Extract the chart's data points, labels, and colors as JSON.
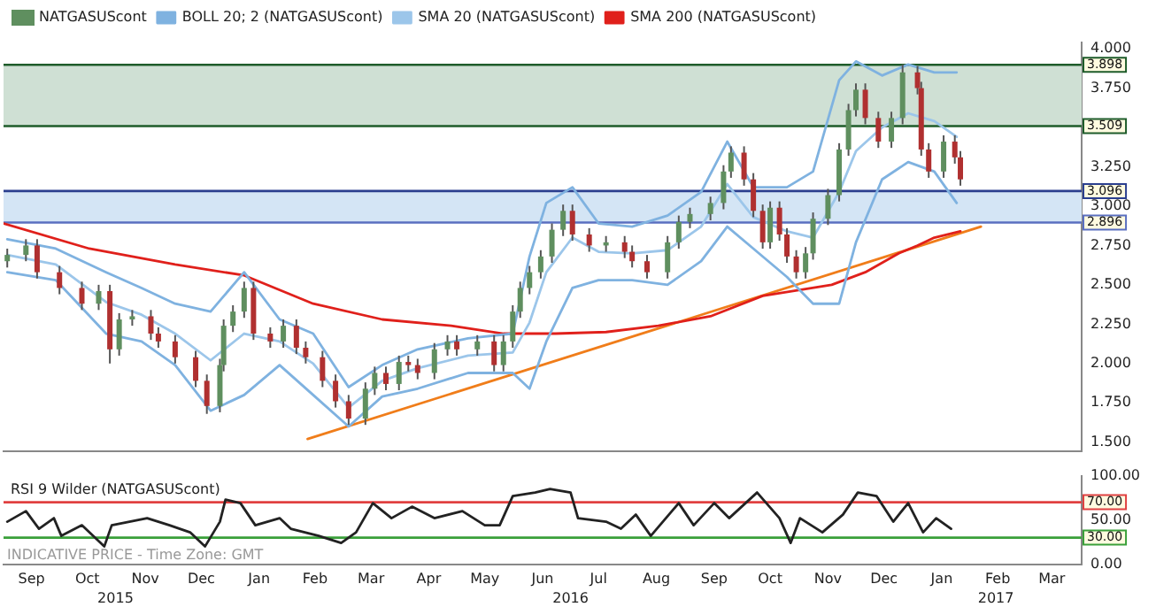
{
  "chart_data": [
    {
      "type": "candlestick",
      "legend": "top left",
      "grid": false,
      "tick_labels": "y",
      "marker": "none",
      "line_style": "solid",
      "xlim": [
        "2015-09-01",
        "2017-04-01"
      ],
      "xticks": [
        {
          "value": "2015-09-16",
          "label": null
        },
        {
          "value": "2016-09-16",
          "label": null
        }
      ],
      "ylim": [
        1.44,
        4.04
      ],
      "yticks": [
        {
          "value": 1.5,
          "label": "1.500"
        },
        {
          "value": 1.75,
          "label": "1.750"
        },
        {
          "value": 2,
          "label": "2.000"
        },
        {
          "value": 2.25,
          "label": "2.250"
        },
        {
          "value": 2.5,
          "label": "2.500"
        },
        {
          "value": 2.75,
          "label": "2.750"
        },
        {
          "value": 3,
          "label": "3.000"
        },
        {
          "value": 3.25,
          "label": "3.250"
        },
        {
          "value": 3.75,
          "label": "3.750"
        },
        {
          "value": 4,
          "label": "4.000"
        }
      ],
      "bands": [
        {
          "axis": "y",
          "from": 3.509,
          "to": 3.898,
          "color": "#cfe0d4"
        },
        {
          "axis": "y",
          "from": 2.896,
          "to": 3.096,
          "color": "#d4e5f5"
        }
      ],
      "ref_lines": [
        {
          "axis": "y",
          "value": 3.898,
          "label": "3.898",
          "color": "#1e5c2a"
        },
        {
          "axis": "y",
          "value": 3.509,
          "label": "3.509",
          "color": "#1e5c2a"
        },
        {
          "axis": "y",
          "value": 3.096,
          "label": "3.096",
          "color": "#2b3f8f"
        },
        {
          "axis": "y",
          "value": 2.896,
          "label": "2.896",
          "color": "#5a6fc0"
        }
      ],
      "series": [
        {
          "name": "NATGASUScont",
          "x": [
            "2015-09-03",
            "2015-09-13",
            "2015-09-19",
            "2015-10-01",
            "2015-10-13",
            "2015-10-22",
            "2015-10-28",
            "2015-11-02",
            "2015-11-09",
            "2015-11-19",
            "2015-11-23",
            "2015-12-02",
            "2015-12-13",
            "2015-12-19",
            "2015-12-26",
            "2015-12-28",
            "2016-01-02",
            "2016-01-08",
            "2016-01-13",
            "2016-01-22",
            "2016-01-29",
            "2016-02-05",
            "2016-02-10",
            "2016-02-19",
            "2016-02-26",
            "2016-03-04",
            "2016-03-13",
            "2016-03-18",
            "2016-03-24",
            "2016-03-31",
            "2016-04-05",
            "2016-04-10",
            "2016-04-19",
            "2016-04-26",
            "2016-05-01",
            "2016-05-12",
            "2016-05-21",
            "2016-05-26",
            "2016-05-31",
            "2016-06-04",
            "2016-06-09",
            "2016-06-15",
            "2016-06-21",
            "2016-06-27",
            "2016-07-02",
            "2016-07-11",
            "2016-07-20",
            "2016-07-30",
            "2016-08-03",
            "2016-08-11",
            "2016-08-22",
            "2016-08-28",
            "2016-09-03",
            "2016-09-14",
            "2016-09-21",
            "2016-09-25",
            "2016-10-02",
            "2016-10-07",
            "2016-10-12",
            "2016-10-16",
            "2016-10-21",
            "2016-10-25",
            "2016-10-30",
            "2016-11-04",
            "2016-11-08",
            "2016-11-16",
            "2016-11-22",
            "2016-11-27",
            "2016-12-01",
            "2016-12-06",
            "2016-12-13",
            "2016-12-20",
            "2016-12-26",
            "2017-01-03",
            "2017-01-05",
            "2017-01-09",
            "2017-01-17",
            "2017-01-23",
            "2017-01-26"
          ],
          "ohlc": [
            [
              2.65,
              2.73,
              2.61,
              2.69
            ],
            [
              2.69,
              2.79,
              2.65,
              2.75
            ],
            [
              2.75,
              2.79,
              2.54,
              2.58
            ],
            [
              2.58,
              2.62,
              2.44,
              2.48
            ],
            [
              2.48,
              2.52,
              2.34,
              2.38
            ],
            [
              2.38,
              2.5,
              2.34,
              2.46
            ],
            [
              2.46,
              2.5,
              2.0,
              2.09
            ],
            [
              2.09,
              2.32,
              2.05,
              2.28
            ],
            [
              2.28,
              2.34,
              2.24,
              2.3
            ],
            [
              2.3,
              2.34,
              2.15,
              2.19
            ],
            [
              2.19,
              2.23,
              2.1,
              2.14
            ],
            [
              2.14,
              2.18,
              2.0,
              2.04
            ],
            [
              2.04,
              2.08,
              1.85,
              1.89
            ],
            [
              1.89,
              1.93,
              1.68,
              1.73
            ],
            [
              1.73,
              2.03,
              1.69,
              1.99
            ],
            [
              1.99,
              2.28,
              1.95,
              2.24
            ],
            [
              2.24,
              2.37,
              2.2,
              2.33
            ],
            [
              2.33,
              2.52,
              2.29,
              2.48
            ],
            [
              2.48,
              2.52,
              2.15,
              2.19
            ],
            [
              2.19,
              2.23,
              2.1,
              2.14
            ],
            [
              2.14,
              2.28,
              2.1,
              2.24
            ],
            [
              2.24,
              2.28,
              2.06,
              2.1
            ],
            [
              2.1,
              2.14,
              2.0,
              2.04
            ],
            [
              2.04,
              2.08,
              1.85,
              1.89
            ],
            [
              1.89,
              1.93,
              1.72,
              1.76
            ],
            [
              1.76,
              1.8,
              1.61,
              1.65
            ],
            [
              1.65,
              1.88,
              1.61,
              1.84
            ],
            [
              1.84,
              1.98,
              1.8,
              1.94
            ],
            [
              1.94,
              1.98,
              1.83,
              1.87
            ],
            [
              1.87,
              2.05,
              1.83,
              2.01
            ],
            [
              2.01,
              2.05,
              1.95,
              1.99
            ],
            [
              1.99,
              2.03,
              1.9,
              1.94
            ],
            [
              1.94,
              2.13,
              1.9,
              2.09
            ],
            [
              2.09,
              2.18,
              2.05,
              2.14
            ],
            [
              2.14,
              2.18,
              2.05,
              2.09
            ],
            [
              2.09,
              2.18,
              2.05,
              2.14
            ],
            [
              2.14,
              2.18,
              1.95,
              1.99
            ],
            [
              1.99,
              2.18,
              1.95,
              2.14
            ],
            [
              2.14,
              2.37,
              2.1,
              2.33
            ],
            [
              2.33,
              2.52,
              2.29,
              2.48
            ],
            [
              2.48,
              2.62,
              2.44,
              2.58
            ],
            [
              2.58,
              2.72,
              2.54,
              2.68
            ],
            [
              2.68,
              2.89,
              2.64,
              2.85
            ],
            [
              2.85,
              3.01,
              2.81,
              2.97
            ],
            [
              2.97,
              3.01,
              2.78,
              2.82
            ],
            [
              2.82,
              2.86,
              2.71,
              2.75
            ],
            [
              2.75,
              2.81,
              2.71,
              2.77
            ],
            [
              2.77,
              2.81,
              2.67,
              2.71
            ],
            [
              2.71,
              2.75,
              2.61,
              2.65
            ],
            [
              2.65,
              2.69,
              2.54,
              2.58
            ],
            [
              2.58,
              2.81,
              2.54,
              2.77
            ],
            [
              2.77,
              2.94,
              2.73,
              2.9
            ],
            [
              2.9,
              2.99,
              2.86,
              2.95
            ],
            [
              2.95,
              3.06,
              2.91,
              3.02
            ],
            [
              3.02,
              3.26,
              2.98,
              3.22
            ],
            [
              3.22,
              3.38,
              3.18,
              3.34
            ],
            [
              3.34,
              3.38,
              3.13,
              3.17
            ],
            [
              3.17,
              3.21,
              2.93,
              2.97
            ],
            [
              2.97,
              3.01,
              2.73,
              2.77
            ],
            [
              2.77,
              3.03,
              2.73,
              2.99
            ],
            [
              2.99,
              3.03,
              2.78,
              2.82
            ],
            [
              2.82,
              2.86,
              2.64,
              2.68
            ],
            [
              2.68,
              2.72,
              2.54,
              2.58
            ],
            [
              2.58,
              2.74,
              2.54,
              2.7
            ],
            [
              2.7,
              2.96,
              2.66,
              2.92
            ],
            [
              2.92,
              3.11,
              2.88,
              3.07
            ],
            [
              3.07,
              3.4,
              3.03,
              3.36
            ],
            [
              3.36,
              3.65,
              3.32,
              3.61
            ],
            [
              3.61,
              3.78,
              3.57,
              3.74
            ],
            [
              3.74,
              3.78,
              3.52,
              3.56
            ],
            [
              3.56,
              3.6,
              3.37,
              3.41
            ],
            [
              3.41,
              3.6,
              3.37,
              3.56
            ],
            [
              3.56,
              3.9,
              3.52,
              3.85
            ],
            [
              3.85,
              3.89,
              3.71,
              3.75
            ],
            [
              3.75,
              3.79,
              3.32,
              3.36
            ],
            [
              3.36,
              3.4,
              3.18,
              3.22
            ],
            [
              3.22,
              3.45,
              3.18,
              3.41
            ],
            [
              3.41,
              3.45,
              3.27,
              3.31
            ],
            [
              3.31,
              3.35,
              3.13,
              3.17
            ]
          ],
          "colors": [
            "#5f8f5f",
            "#5f8f5f",
            "#b03030",
            "#b03030",
            "#b03030",
            "#5f8f5f",
            "#b03030",
            "#5f8f5f",
            "#5f8f5f",
            "#b03030",
            "#b03030",
            "#b03030",
            "#b03030",
            "#b03030",
            "#5f8f5f",
            "#5f8f5f",
            "#5f8f5f",
            "#5f8f5f",
            "#b03030",
            "#b03030",
            "#5f8f5f",
            "#b03030",
            "#b03030",
            "#b03030",
            "#b03030",
            "#b03030",
            "#5f8f5f",
            "#5f8f5f",
            "#b03030",
            "#5f8f5f",
            "#b03030",
            "#b03030",
            "#5f8f5f",
            "#5f8f5f",
            "#b03030",
            "#5f8f5f",
            "#b03030",
            "#5f8f5f",
            "#5f8f5f",
            "#5f8f5f",
            "#5f8f5f",
            "#5f8f5f",
            "#5f8f5f",
            "#5f8f5f",
            "#b03030",
            "#b03030",
            "#5f8f5f",
            "#b03030",
            "#b03030",
            "#b03030",
            "#5f8f5f",
            "#5f8f5f",
            "#5f8f5f",
            "#5f8f5f",
            "#5f8f5f",
            "#5f8f5f",
            "#b03030",
            "#b03030",
            "#b03030",
            "#5f8f5f",
            "#b03030",
            "#b03030",
            "#b03030",
            "#5f8f5f",
            "#5f8f5f",
            "#5f8f5f",
            "#5f8f5f",
            "#5f8f5f",
            "#5f8f5f",
            "#b03030",
            "#b03030",
            "#5f8f5f",
            "#5f8f5f",
            "#b03030",
            "#b03030",
            "#b03030",
            "#5f8f5f",
            "#b03030",
            "#b03030"
          ]
        },
        {
          "type": "line",
          "name": "BOLL 20; 2 (NATGASUScont)",
          "color": "#7fb2e0",
          "x": [
            "2015-09-03",
            "2015-09-29",
            "2015-10-26",
            "2015-11-14",
            "2015-12-02",
            "2015-12-21",
            "2016-01-08",
            "2016-01-27",
            "2016-02-14",
            "2016-03-04",
            "2016-03-22",
            "2016-04-10",
            "2016-05-07",
            "2016-05-31",
            "2016-06-09",
            "2016-06-18",
            "2016-07-02",
            "2016-07-16",
            "2016-08-03",
            "2016-08-22",
            "2016-09-09",
            "2016-09-23",
            "2016-10-07",
            "2016-10-25",
            "2016-11-08",
            "2016-11-22",
            "2016-12-01",
            "2016-12-15",
            "2016-12-29",
            "2017-01-12",
            "2017-01-24"
          ],
          "values": [
            2.79,
            2.73,
            2.58,
            2.48,
            2.38,
            2.33,
            2.58,
            2.28,
            2.19,
            1.85,
            1.99,
            2.09,
            2.16,
            2.19,
            2.68,
            3.02,
            3.12,
            2.89,
            2.87,
            2.94,
            3.09,
            3.41,
            3.12,
            3.12,
            3.22,
            3.8,
            3.92,
            3.83,
            3.9,
            3.85,
            3.85
          ]
        },
        {
          "type": "line",
          "color": "#7fb2e0",
          "x": [
            "2015-09-03",
            "2015-09-29",
            "2015-10-26",
            "2015-11-14",
            "2015-12-02",
            "2015-12-21",
            "2016-01-08",
            "2016-01-27",
            "2016-02-14",
            "2016-03-04",
            "2016-03-22",
            "2016-04-10",
            "2016-05-07",
            "2016-05-31",
            "2016-06-09",
            "2016-06-18",
            "2016-07-02",
            "2016-07-16",
            "2016-08-03",
            "2016-08-22",
            "2016-09-09",
            "2016-09-23",
            "2016-10-07",
            "2016-10-25",
            "2016-11-08",
            "2016-11-22",
            "2016-12-01",
            "2016-12-15",
            "2016-12-29",
            "2017-01-12",
            "2017-01-24"
          ],
          "values": [
            2.58,
            2.53,
            2.19,
            2.14,
            1.99,
            1.7,
            1.8,
            1.99,
            1.8,
            1.6,
            1.79,
            1.84,
            1.94,
            1.94,
            1.84,
            2.14,
            2.48,
            2.53,
            2.53,
            2.5,
            2.65,
            2.87,
            2.73,
            2.55,
            2.38,
            2.38,
            2.77,
            3.17,
            3.28,
            3.22,
            3.02
          ]
        },
        {
          "type": "line",
          "name": "SMA 20 (NATGASUScont)",
          "color": "#9cc6ea",
          "x": [
            "2015-09-03",
            "2015-09-29",
            "2015-10-26",
            "2015-11-14",
            "2015-12-02",
            "2015-12-21",
            "2016-01-08",
            "2016-01-27",
            "2016-02-14",
            "2016-03-04",
            "2016-03-22",
            "2016-04-10",
            "2016-05-07",
            "2016-05-31",
            "2016-06-09",
            "2016-06-18",
            "2016-07-02",
            "2016-07-16",
            "2016-08-03",
            "2016-08-22",
            "2016-09-09",
            "2016-09-23",
            "2016-10-07",
            "2016-10-25",
            "2016-11-08",
            "2016-11-22",
            "2016-12-01",
            "2016-12-15",
            "2016-12-29",
            "2017-01-12",
            "2017-01-24"
          ],
          "values": [
            2.69,
            2.63,
            2.39,
            2.31,
            2.19,
            2.02,
            2.19,
            2.14,
            2.0,
            1.72,
            1.89,
            1.97,
            2.05,
            2.07,
            2.26,
            2.58,
            2.8,
            2.71,
            2.7,
            2.72,
            2.87,
            3.14,
            2.93,
            2.84,
            2.8,
            3.09,
            3.35,
            3.5,
            3.59,
            3.54,
            3.44
          ]
        },
        {
          "type": "line",
          "name": "SMA 200 (NATGASUScont)",
          "color": "#e0201b",
          "x": [
            "2015-09-01",
            "2015-10-17",
            "2015-12-02",
            "2016-01-08",
            "2016-02-14",
            "2016-03-22",
            "2016-04-28",
            "2016-05-26",
            "2016-06-23",
            "2016-07-20",
            "2016-08-17",
            "2016-09-14",
            "2016-10-12",
            "2016-11-18",
            "2016-12-06",
            "2016-12-24",
            "2017-01-03",
            "2017-01-12",
            "2017-01-26"
          ],
          "values": [
            2.89,
            2.73,
            2.63,
            2.56,
            2.38,
            2.28,
            2.24,
            2.19,
            2.19,
            2.2,
            2.24,
            2.3,
            2.43,
            2.5,
            2.58,
            2.7,
            2.75,
            2.8,
            2.84
          ]
        },
        {
          "type": "line",
          "color": "#f07d1a",
          "x": [
            "2016-02-11",
            "2017-02-06"
          ],
          "values": [
            1.52,
            2.87
          ]
        }
      ]
    },
    {
      "type": "line",
      "title": "RSI 9 Wilder (NATGASUScont)",
      "grid": false,
      "legend": false,
      "marker": "none",
      "line_style": "solid",
      "annotations": [
        "INDICATIVE PRICE - Time Zone: GMT"
      ],
      "xlim": [
        "2015-09-01",
        "2017-04-01"
      ],
      "xticks": [
        {
          "value": "2015-09-16",
          "label": "Sep"
        },
        {
          "value": "2015-10-16",
          "label": "Oct"
        },
        {
          "value": "2015-11-16",
          "label": "Nov"
        },
        {
          "value": "2015-12-16",
          "label": "Dec"
        },
        {
          "value": "2016-01-16",
          "label": "Jan"
        },
        {
          "value": "2016-02-15",
          "label": "Feb"
        },
        {
          "value": "2016-03-16",
          "label": "Mar"
        },
        {
          "value": "2016-04-16",
          "label": "Apr"
        },
        {
          "value": "2016-05-16",
          "label": "May"
        },
        {
          "value": "2016-06-16",
          "label": "Jun"
        },
        {
          "value": "2016-07-16",
          "label": "Jul"
        },
        {
          "value": "2016-08-16",
          "label": "Aug"
        },
        {
          "value": "2016-09-16",
          "label": "Sep"
        },
        {
          "value": "2016-10-16",
          "label": "Oct"
        },
        {
          "value": "2016-11-16",
          "label": "Nov"
        },
        {
          "value": "2016-12-16",
          "label": "Dec"
        },
        {
          "value": "2017-01-16",
          "label": "Jan"
        },
        {
          "value": "2017-02-15",
          "label": "Feb"
        },
        {
          "value": "2017-03-16",
          "label": "Mar"
        }
      ],
      "x2lim": [
        "2015-09-01",
        "2017-04-01"
      ],
      "x2ticks": [
        {
          "value": "2015-10-31",
          "label": "2015"
        },
        {
          "value": "2016-07-01",
          "label": "2016"
        },
        {
          "value": "2017-02-14",
          "label": "2017"
        }
      ],
      "ylim": [
        0,
        100
      ],
      "yticks": [
        {
          "value": 0,
          "label": "0.00"
        },
        {
          "value": 50,
          "label": "50.00"
        },
        {
          "value": 100,
          "label": "100.00"
        }
      ],
      "ref_lines": [
        {
          "axis": "y",
          "value": 70,
          "label": "70.00",
          "color": "#e04040"
        },
        {
          "axis": "y",
          "value": 30,
          "label": "30.00",
          "color": "#3aa03a"
        }
      ],
      "series": [
        {
          "color": "#222222",
          "x": [
            "2015-09-03",
            "2015-09-13",
            "2015-09-20",
            "2015-09-28",
            "2015-10-02",
            "2015-10-13",
            "2015-10-25",
            "2015-10-29",
            "2015-11-17",
            "2015-11-29",
            "2015-12-10",
            "2015-12-18",
            "2015-12-26",
            "2015-12-29",
            "2016-01-06",
            "2016-01-14",
            "2016-01-27",
            "2016-02-02",
            "2016-02-17",
            "2016-02-29",
            "2016-03-08",
            "2016-03-17",
            "2016-03-27",
            "2016-04-07",
            "2016-04-19",
            "2016-05-04",
            "2016-05-16",
            "2016-05-24",
            "2016-05-31",
            "2016-06-12",
            "2016-06-20",
            "2016-07-01",
            "2016-07-05",
            "2016-07-20",
            "2016-07-28",
            "2016-08-05",
            "2016-08-13",
            "2016-08-28",
            "2016-09-05",
            "2016-09-16",
            "2016-09-24",
            "2016-10-09",
            "2016-10-21",
            "2016-10-27",
            "2016-11-01",
            "2016-11-13",
            "2016-11-24",
            "2016-12-02",
            "2016-12-12",
            "2016-12-21",
            "2016-12-29",
            "2017-01-06",
            "2017-01-13",
            "2017-01-21"
          ],
          "values": [
            48,
            60,
            40,
            52,
            32,
            44,
            20,
            44,
            52,
            44,
            36,
            20,
            48,
            73,
            69,
            44,
            52,
            40,
            32,
            24,
            36,
            69,
            52,
            65,
            52,
            60,
            44,
            44,
            77,
            81,
            85,
            81,
            52,
            48,
            40,
            56,
            32,
            69,
            44,
            69,
            52,
            81,
            52,
            24,
            52,
            36,
            56,
            81,
            77,
            48,
            69,
            36,
            52,
            40
          ]
        }
      ]
    }
  ]
}
